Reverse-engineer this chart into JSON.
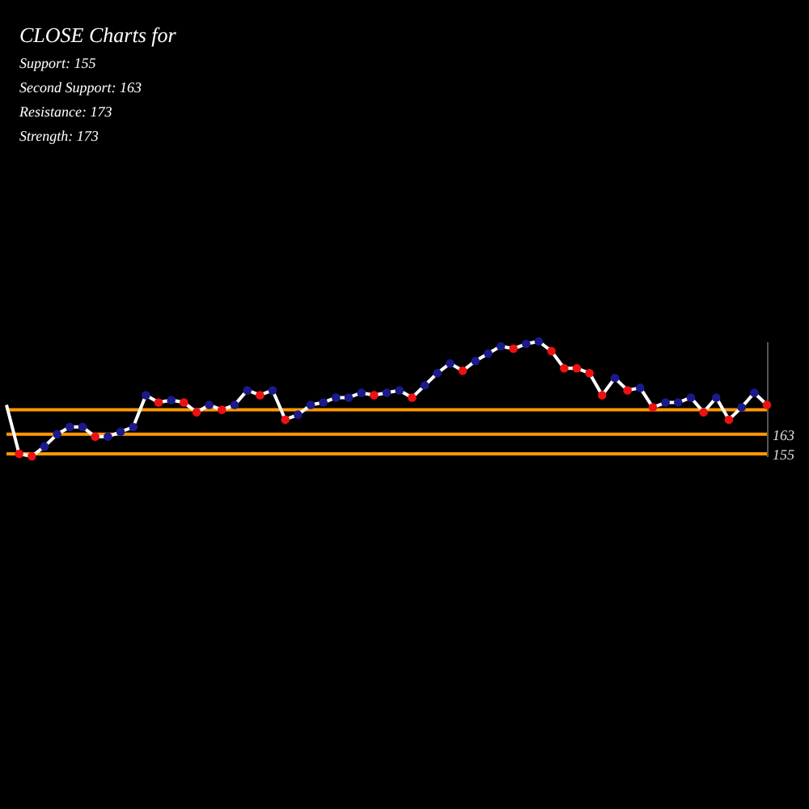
{
  "chart_data": {
    "type": "line",
    "title": "CLOSE Charts for",
    "annotations": [
      "Support: 155",
      "Second Support: 163",
      "Resistance: 173",
      "Strength: 173"
    ],
    "categories": [
      null,
      null,
      null,
      null,
      null,
      null,
      null,
      null,
      null,
      null,
      null,
      null,
      null,
      null,
      null,
      null,
      null,
      null,
      null,
      null,
      null,
      null,
      null,
      null,
      null,
      null,
      null,
      null,
      null,
      null,
      null,
      null,
      null,
      null,
      null,
      null,
      null,
      null,
      null,
      null,
      null,
      null,
      null,
      null,
      null,
      null,
      null,
      null,
      null,
      null,
      null,
      null,
      null,
      null,
      null,
      null,
      null,
      null,
      null,
      null,
      null
    ],
    "series": [
      {
        "color": "#ffffff",
        "values": [
          175,
          155,
          154,
          158,
          163,
          166,
          166,
          162,
          162,
          164,
          166,
          179,
          176,
          177,
          176,
          172,
          175,
          173,
          175,
          181,
          179,
          181,
          169,
          171,
          175,
          176,
          178,
          178,
          180,
          179,
          180,
          181,
          178,
          183,
          188,
          192,
          189,
          193,
          196,
          199,
          198,
          200,
          201,
          197,
          190,
          190,
          188,
          179,
          186,
          181,
          182,
          174,
          176,
          176,
          178,
          172,
          178,
          169,
          174,
          180,
          175
        ]
      },
      {
        "type": "scatter",
        "marker": "circle",
        "values": [
          null,
          155,
          154,
          158,
          163,
          166,
          166,
          162,
          162,
          164,
          166,
          179,
          176,
          177,
          176,
          172,
          175,
          173,
          175,
          181,
          179,
          181,
          169,
          171,
          175,
          176,
          178,
          178,
          180,
          179,
          180,
          181,
          178,
          183,
          188,
          192,
          189,
          193,
          196,
          199,
          198,
          200,
          201,
          197,
          190,
          190,
          188,
          179,
          186,
          181,
          182,
          174,
          176,
          176,
          178,
          172,
          178,
          169,
          174,
          180,
          175
        ],
        "colors": [
          null,
          "#ee1111",
          "#ee1111",
          "#1a1a8c",
          "#1a1a8c",
          "#1a1a8c",
          "#1a1a8c",
          "#ee1111",
          "#1a1a8c",
          "#1a1a8c",
          "#1a1a8c",
          "#1a1a8c",
          "#ee1111",
          "#1a1a8c",
          "#ee1111",
          "#ee1111",
          "#1a1a8c",
          "#ee1111",
          "#1a1a8c",
          "#1a1a8c",
          "#ee1111",
          "#1a1a8c",
          "#ee1111",
          "#1a1a8c",
          "#1a1a8c",
          "#1a1a8c",
          "#1a1a8c",
          "#1a1a8c",
          "#1a1a8c",
          "#ee1111",
          "#1a1a8c",
          "#1a1a8c",
          "#ee1111",
          "#1a1a8c",
          "#1a1a8c",
          "#1a1a8c",
          "#ee1111",
          "#1a1a8c",
          "#1a1a8c",
          "#1a1a8c",
          "#ee1111",
          "#1a1a8c",
          "#1a1a8c",
          "#ee1111",
          "#ee1111",
          "#ee1111",
          "#ee1111",
          "#ee1111",
          "#1a1a8c",
          "#ee1111",
          "#1a1a8c",
          "#ee1111",
          "#1a1a8c",
          "#1a1a8c",
          "#1a1a8c",
          "#ee1111",
          "#1a1a8c",
          "#ee1111",
          "#1a1a8c",
          "#1a1a8c",
          "#ee1111"
        ]
      }
    ],
    "ylim": [
      154,
      201
    ],
    "yticks": [
      155,
      163
    ],
    "tick_labels": "y",
    "line_style": "solid",
    "ref_lines": [
      {
        "axis": "y",
        "value": 173,
        "color": "#ff9900"
      },
      {
        "axis": "y",
        "value": 163,
        "color": "#ff9900"
      },
      {
        "axis": "y",
        "value": 155,
        "color": "#ff9900"
      }
    ]
  }
}
